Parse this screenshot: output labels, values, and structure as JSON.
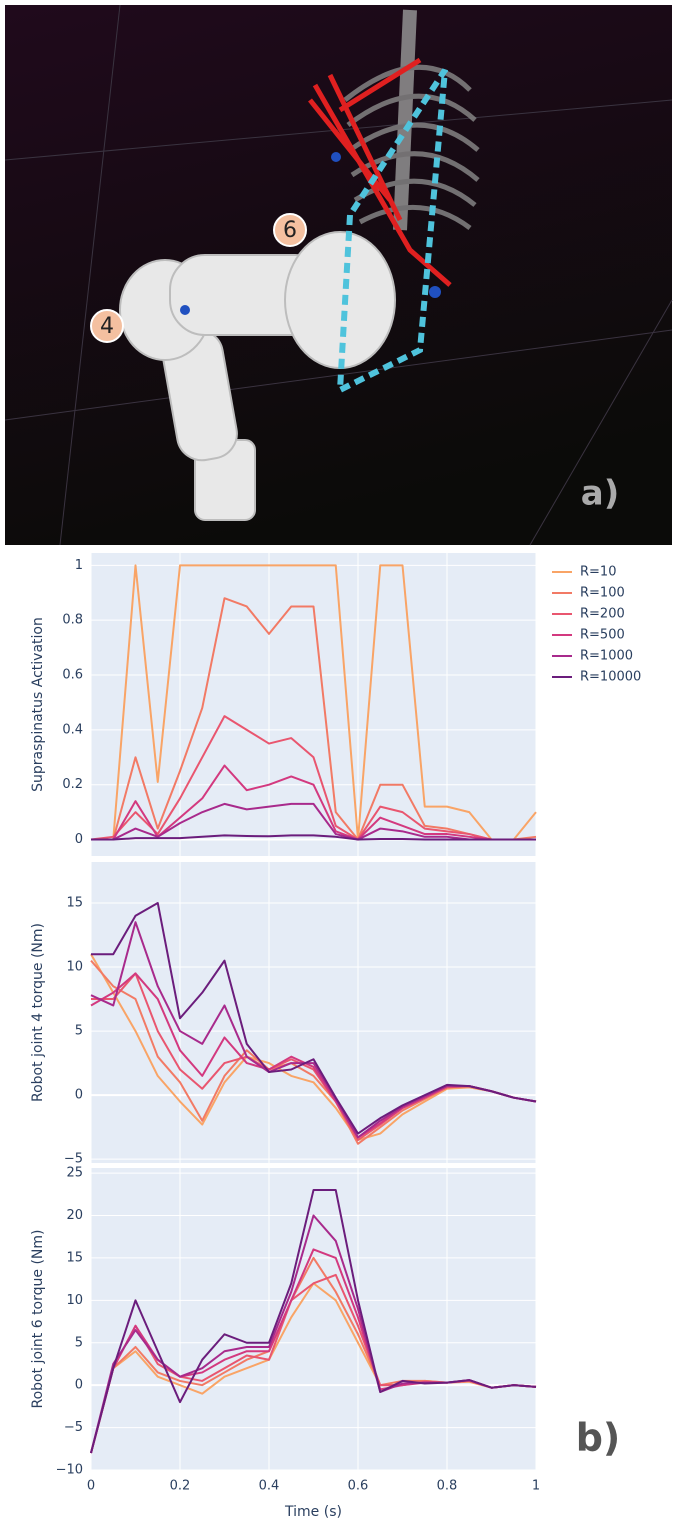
{
  "image": {
    "joint_labels": [
      "4",
      "6"
    ],
    "panel_label": "a)"
  },
  "panel_label": "b)",
  "chart_data": [
    {
      "type": "line",
      "ylabel": "Supraspinatus Activation",
      "x": [
        0,
        0.05,
        0.1,
        0.15,
        0.2,
        0.25,
        0.3,
        0.35,
        0.4,
        0.45,
        0.5,
        0.55,
        0.6,
        0.65,
        0.7,
        0.75,
        0.8,
        0.85,
        0.9,
        0.95,
        1
      ],
      "xlim": [
        0,
        1
      ],
      "xticks": [
        0,
        0.2,
        0.4,
        0.6,
        0.8,
        1
      ],
      "ylim": [
        -0.06,
        1.045
      ],
      "yticks": [
        0,
        0.2,
        0.4,
        0.6,
        0.8,
        1
      ],
      "grid": true,
      "series": [
        {
          "name": "R=10",
          "color": "#f9a466",
          "values": [
            0,
            0,
            1,
            0.21,
            1,
            1,
            1,
            1,
            1,
            1,
            1,
            1,
            0,
            1,
            1,
            0.12,
            0.12,
            0.1,
            0,
            0,
            0.1
          ]
        },
        {
          "name": "R=100",
          "color": "#f27a65",
          "values": [
            0,
            0,
            0.3,
            0.04,
            0.25,
            0.48,
            0.88,
            0.85,
            0.75,
            0.85,
            0.85,
            0.1,
            0,
            0.2,
            0.2,
            0.05,
            0.04,
            0.02,
            0,
            0,
            0.01
          ]
        },
        {
          "name": "R=200",
          "color": "#e9566f",
          "values": [
            0,
            0.01,
            0.1,
            0.02,
            0.15,
            0.3,
            0.45,
            0.4,
            0.35,
            0.37,
            0.3,
            0.05,
            0,
            0.12,
            0.1,
            0.04,
            0.03,
            0.02,
            0,
            0,
            0
          ]
        },
        {
          "name": "R=500",
          "color": "#d3397f",
          "values": [
            0,
            0,
            0.14,
            0.01,
            0.08,
            0.15,
            0.27,
            0.18,
            0.2,
            0.23,
            0.2,
            0.03,
            0,
            0.08,
            0.05,
            0.02,
            0.02,
            0.01,
            0,
            0,
            0
          ]
        },
        {
          "name": "R=1000",
          "color": "#a82a8c",
          "values": [
            0,
            0,
            0.04,
            0.01,
            0.06,
            0.1,
            0.13,
            0.11,
            0.12,
            0.13,
            0.13,
            0.02,
            0,
            0.04,
            0.03,
            0.01,
            0.01,
            0,
            0,
            0,
            0
          ]
        },
        {
          "name": "R=10000",
          "color": "#6b1d7c",
          "values": [
            0,
            0,
            0.005,
            0.005,
            0.005,
            0.01,
            0.015,
            0.013,
            0.012,
            0.015,
            0.015,
            0.01,
            0,
            0.002,
            0.002,
            0,
            0,
            0,
            0,
            0,
            0
          ]
        }
      ]
    },
    {
      "type": "line",
      "ylabel": "Robot joint 4 torque (Nm)",
      "x": [
        0,
        0.05,
        0.1,
        0.15,
        0.2,
        0.25,
        0.3,
        0.35,
        0.4,
        0.45,
        0.5,
        0.55,
        0.6,
        0.65,
        0.7,
        0.75,
        0.8,
        0.85,
        0.9,
        0.95,
        1
      ],
      "xlim": [
        0,
        1
      ],
      "xticks": [
        0,
        0.2,
        0.4,
        0.6,
        0.8,
        1
      ],
      "ylim": [
        -5.3,
        18.2
      ],
      "yticks": [
        {
          "value": -5,
          "label": "−5"
        },
        0,
        5,
        10,
        15
      ],
      "grid": true,
      "series": [
        {
          "color": "#f9a466",
          "values": [
            11,
            8,
            5,
            1.5,
            -0.5,
            -2.3,
            1,
            3,
            2.5,
            1.5,
            1,
            -1,
            -3.5,
            -3,
            -1.5,
            -0.5,
            0.5,
            0.6,
            0.3,
            -0.2,
            -0.5
          ]
        },
        {
          "color": "#f27a65",
          "values": [
            10.5,
            8.5,
            7.5,
            3,
            1,
            -2,
            1.5,
            3.5,
            2,
            2.5,
            1.5,
            -0.5,
            -3.8,
            -2.5,
            -1.2,
            -0.3,
            0.6,
            0.7,
            0.3,
            -0.2,
            -0.5
          ]
        },
        {
          "color": "#e9566f",
          "values": [
            7.5,
            7.5,
            9.5,
            5,
            2,
            0.5,
            2.5,
            3,
            2,
            2.8,
            2,
            -0.5,
            -3.5,
            -2.3,
            -1,
            -0.2,
            0.6,
            0.7,
            0.3,
            -0.2,
            -0.5
          ]
        },
        {
          "color": "#d3397f",
          "values": [
            7,
            8,
            9.5,
            7.5,
            3.5,
            1.5,
            4.5,
            2.5,
            2,
            3,
            2.2,
            -0.5,
            -3.3,
            -2.2,
            -1,
            -0.2,
            0.7,
            0.7,
            0.3,
            -0.2,
            -0.5
          ]
        },
        {
          "color": "#a82a8c",
          "values": [
            7.8,
            7,
            13.5,
            8.5,
            5,
            4,
            7,
            3,
            1.8,
            2.5,
            2.5,
            -0.3,
            -3.3,
            -2,
            -0.9,
            -0.1,
            0.7,
            0.7,
            0.3,
            -0.2,
            -0.5
          ]
        },
        {
          "color": "#6b1d7c",
          "values": [
            11,
            11,
            14,
            15,
            6,
            8,
            10.5,
            4,
            1.8,
            2,
            2.8,
            -0.2,
            -3,
            -1.8,
            -0.8,
            0,
            0.8,
            0.7,
            0.3,
            -0.2,
            -0.5
          ]
        }
      ]
    },
    {
      "type": "line",
      "ylabel": "Robot joint 6 torque (Nm)",
      "xlabel": "Time (s)",
      "x": [
        0,
        0.05,
        0.1,
        0.15,
        0.2,
        0.25,
        0.3,
        0.35,
        0.4,
        0.45,
        0.5,
        0.55,
        0.6,
        0.65,
        0.7,
        0.75,
        0.8,
        0.85,
        0.9,
        0.95,
        1
      ],
      "xlim": [
        0,
        1
      ],
      "xticks": [
        0,
        0.2,
        0.4,
        0.6,
        0.8,
        1
      ],
      "ylim": [
        -10,
        25.6
      ],
      "yticks": [
        {
          "value": -10,
          "label": "−10"
        },
        {
          "value": -5,
          "label": "−5"
        },
        0,
        5,
        10,
        15,
        20,
        25
      ],
      "grid": true,
      "series": [
        {
          "color": "#f9a466",
          "values": [
            -8,
            2,
            4,
            1,
            0,
            -1,
            1,
            2,
            3,
            8,
            12,
            10,
            5,
            0,
            0,
            0.5,
            0.3,
            0.4,
            -0.3,
            0,
            -0.2
          ]
        },
        {
          "color": "#f27a65",
          "values": [
            -8,
            2,
            4.5,
            1.5,
            0.5,
            0,
            1.5,
            3,
            4,
            10,
            15,
            11,
            6,
            0,
            0.5,
            0.5,
            0.3,
            0.5,
            -0.3,
            0,
            -0.2
          ]
        },
        {
          "color": "#e9566f",
          "values": [
            -8,
            2,
            7,
            2.5,
            1,
            0.5,
            2,
            3.5,
            3,
            10,
            12,
            13,
            7,
            0,
            0,
            0.4,
            0.3,
            0.5,
            -0.3,
            0,
            -0.2
          ]
        },
        {
          "color": "#d3397f",
          "values": [
            -8,
            2,
            7,
            3,
            1,
            1.5,
            3,
            4,
            4,
            10,
            16,
            15,
            8,
            -0.5,
            0,
            0.3,
            0.3,
            0.6,
            -0.3,
            0,
            -0.2
          ]
        },
        {
          "color": "#a82a8c",
          "values": [
            -8,
            2.5,
            6.5,
            3,
            1,
            2,
            4,
            4.5,
            4.5,
            11,
            20,
            17,
            9,
            -0.8,
            0.2,
            0.3,
            0.3,
            0.6,
            -0.3,
            0,
            -0.2
          ]
        },
        {
          "color": "#6b1d7c",
          "values": [
            -8,
            2,
            10,
            4,
            -2,
            3,
            6,
            5,
            5,
            12,
            23,
            23,
            10,
            -0.8,
            0.5,
            0.2,
            0.3,
            0.6,
            -0.3,
            0,
            -0.2
          ]
        }
      ]
    }
  ]
}
